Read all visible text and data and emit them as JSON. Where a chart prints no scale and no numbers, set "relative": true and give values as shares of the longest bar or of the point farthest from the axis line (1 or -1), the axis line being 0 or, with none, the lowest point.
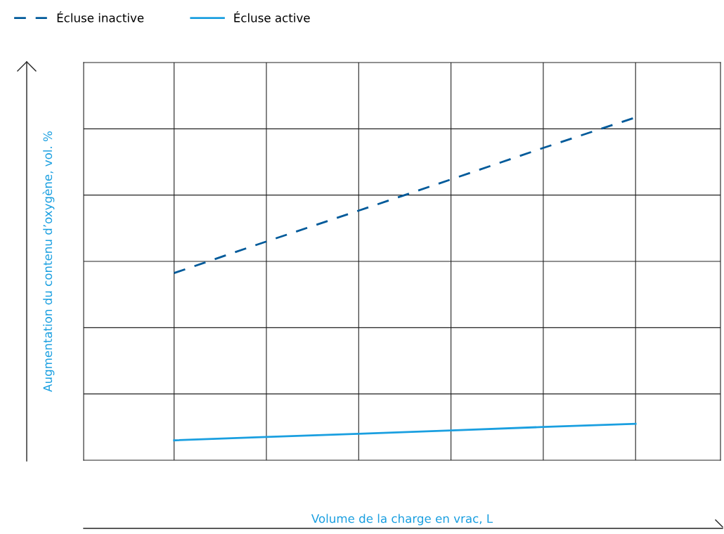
{
  "chart_data": {
    "type": "line",
    "relative": true,
    "xlabel": "Volume de la charge en vrac, L",
    "ylabel": "Augmentation du contenu d’oxygène, vol. %",
    "categories": [
      null,
      null,
      null,
      null,
      null,
      null
    ],
    "series": [
      {
        "name": "Écluse inactive",
        "color": "#005a9a",
        "line_style": "dashed",
        "values": [
          0.546,
          0.638,
          0.728,
          0.819,
          0.911,
          1
        ]
      },
      {
        "name": "Écluse active",
        "color": "#1a9fe0",
        "line_style": "solid",
        "values": [
          0.058,
          0.068,
          0.077,
          0.087,
          0.097,
          0.106
        ]
      }
    ],
    "grid": true,
    "legend": "top left",
    "tick_labels": false,
    "marker": "none"
  }
}
